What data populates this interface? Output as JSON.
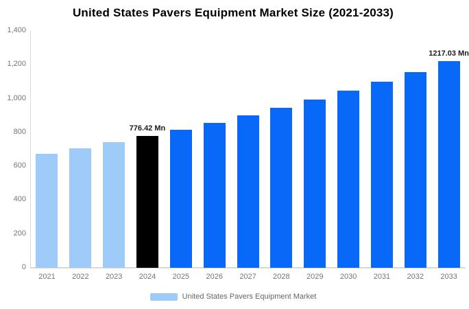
{
  "title": "United States Pavers Equipment Market Size (2021-2033)",
  "legend": {
    "label": "United States Pavers Equipment Market",
    "swatch_color": "#9ecbf8"
  },
  "colors": {
    "historical_bar": "#9ecbf8",
    "base_year_bar": "#000000",
    "forecast_bar": "#0868f8",
    "axis_line": "#d9d9d9",
    "tick_text": "#757575",
    "data_label_text": "#1a1a1a",
    "legend_text": "#666666",
    "title_text": "#000000"
  },
  "chart_data": {
    "type": "bar",
    "title": "United States Pavers Equipment Market Size (2021-2033)",
    "xlabel": "",
    "ylabel": "",
    "ylim": [
      0,
      1400
    ],
    "grid": false,
    "legend_position": "bottom",
    "unit": "Mn",
    "categories": [
      "2021",
      "2022",
      "2023",
      "2024",
      "2025",
      "2026",
      "2027",
      "2028",
      "2029",
      "2030",
      "2031",
      "2032",
      "2033"
    ],
    "values": [
      670,
      702,
      738,
      776.42,
      812,
      854,
      898,
      943,
      991,
      1042,
      1096,
      1153,
      1217.03
    ],
    "bar_colors": [
      "#9ecbf8",
      "#9ecbf8",
      "#9ecbf8",
      "#000000",
      "#0868f8",
      "#0868f8",
      "#0868f8",
      "#0868f8",
      "#0868f8",
      "#0868f8",
      "#0868f8",
      "#0868f8",
      "#0868f8"
    ],
    "yticks": [
      {
        "value": 0,
        "label": "0"
      },
      {
        "value": 200,
        "label": "200"
      },
      {
        "value": 400,
        "label": "400"
      },
      {
        "value": 600,
        "label": "600"
      },
      {
        "value": 800,
        "label": "800"
      },
      {
        "value": 1000,
        "label": "1,000"
      },
      {
        "value": 1200,
        "label": "1,200"
      },
      {
        "value": 1400,
        "label": "1,400"
      }
    ],
    "data_labels": [
      {
        "index": 3,
        "text": "776.42 Mn"
      },
      {
        "index": 12,
        "text": "1217.03 Mn"
      }
    ]
  }
}
